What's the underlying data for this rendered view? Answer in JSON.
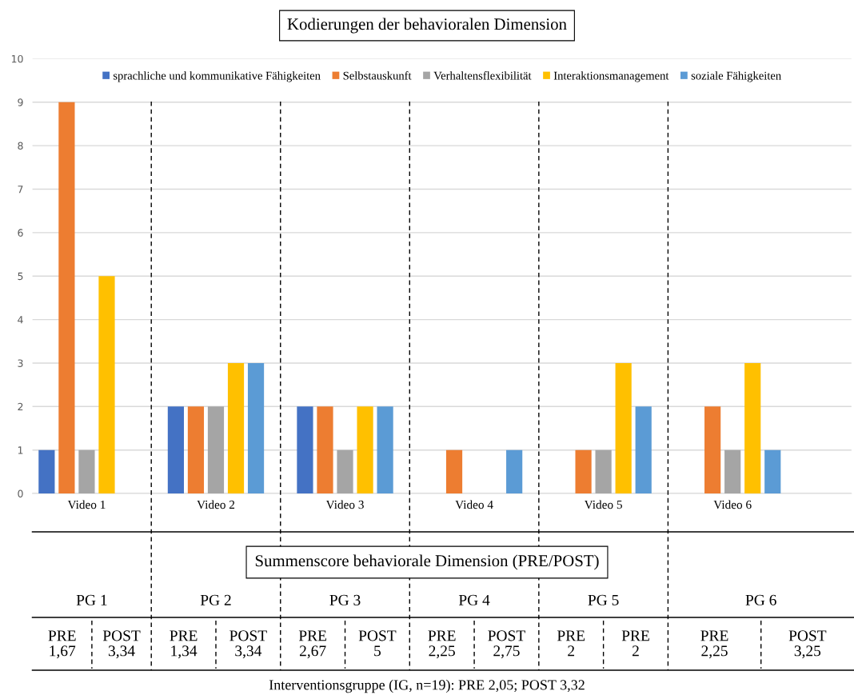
{
  "chart_data": {
    "type": "bar",
    "title": "Kodierungen der behavioralen Dimension",
    "categories": [
      "Video 1",
      "Video 2",
      "Video 3",
      "Video 4",
      "Video 5",
      "Video 6"
    ],
    "series": [
      {
        "name": "sprachliche und kommunikative Fähigkeiten",
        "color": "#4472c4",
        "values": [
          1,
          2,
          2,
          0,
          0,
          0
        ]
      },
      {
        "name": "Selbstauskunft",
        "color": "#ed7d31",
        "values": [
          9,
          2,
          2,
          1,
          1,
          2
        ]
      },
      {
        "name": "Verhaltensflexibilität",
        "color": "#a5a5a5",
        "values": [
          1,
          2,
          1,
          0,
          1,
          1
        ]
      },
      {
        "name": "Interaktionsmanagement",
        "color": "#ffc000",
        "values": [
          5,
          3,
          2,
          0,
          3,
          3
        ]
      },
      {
        "name": "soziale Fähigkeiten",
        "color": "#5b9bd5",
        "values": [
          0,
          3,
          2,
          1,
          2,
          1
        ]
      }
    ],
    "ylim": [
      0,
      10
    ],
    "yticks": [
      0,
      1,
      2,
      3,
      4,
      5,
      6,
      7,
      8,
      9,
      10
    ],
    "grid": "y",
    "legend": "top",
    "annotations": [
      "Summenscore behaviorale Dimension (PRE/POST)",
      "PG 1",
      "PRE\n1,67",
      "POST\n3,34",
      "PG 2",
      "PRE\n1,34",
      "POST\n3,34",
      "PG 3",
      "PRE\n2,67",
      "POST\n5",
      "PG 4",
      "PRE\n2,25",
      "POST\n2,75",
      "PG 5",
      "PRE\n2",
      "PRE\n2",
      "PG 6",
      "PRE\n2,25",
      "POST\n3,25",
      "Interventionsgruppe (IG, n=19): PRE 2,05; POST 3,32"
    ]
  }
}
